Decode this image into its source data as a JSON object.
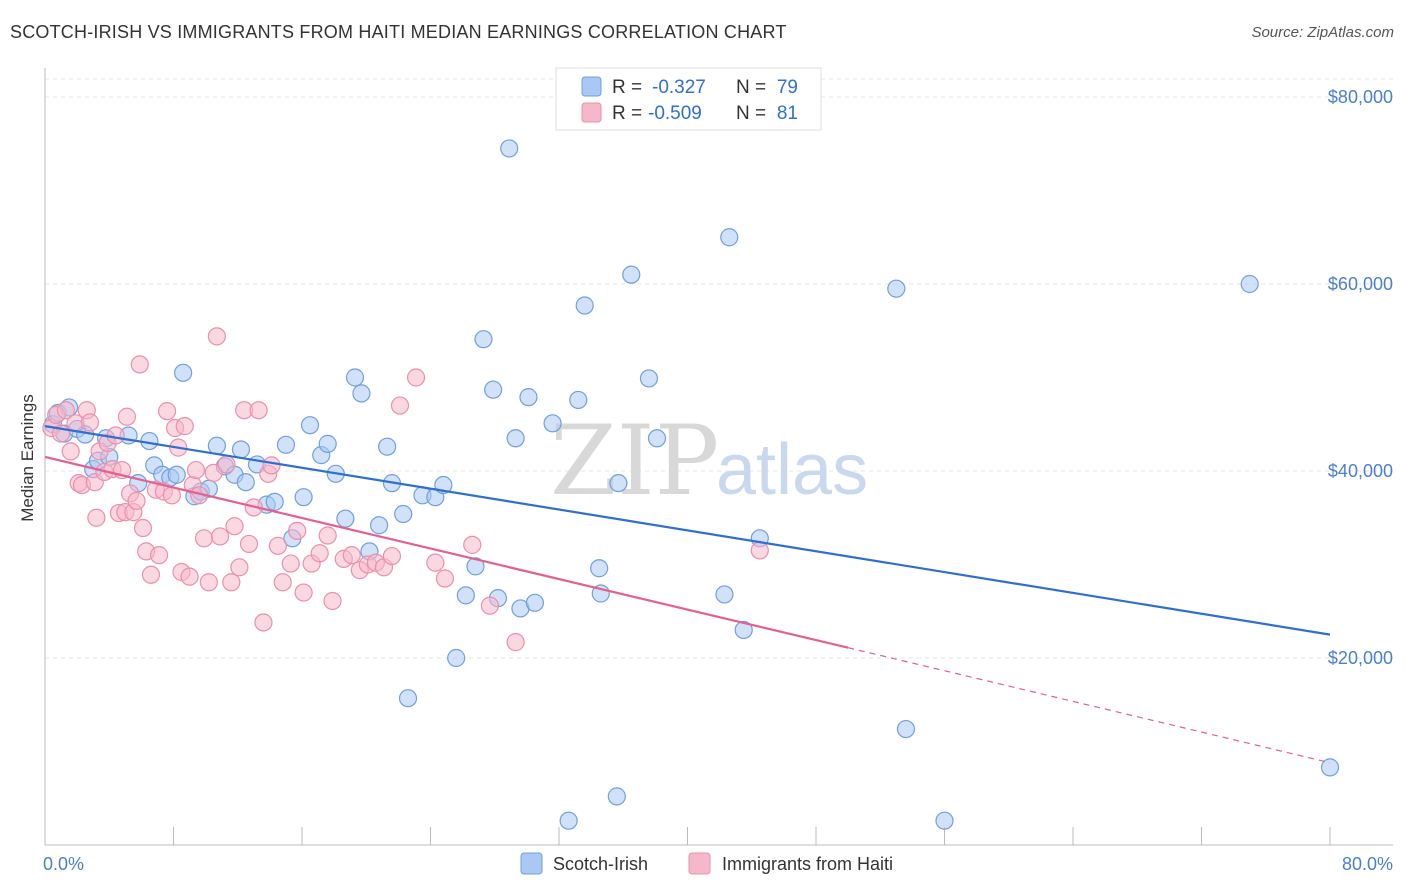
{
  "header": {
    "title": "SCOTCH-IRISH VS IMMIGRANTS FROM HAITI MEDIAN EARNINGS CORRELATION CHART",
    "source": "Source: ZipAtlas.com"
  },
  "watermark": {
    "zip": "ZIP",
    "atlas": "atlas"
  },
  "legend": {
    "rows": [
      {
        "r_label": "R =",
        "r_value": "-0.327",
        "n_label": "N =",
        "n_value": "79",
        "color": "#a9c8f3"
      },
      {
        "r_label": "R =",
        "r_value": "-0.509",
        "n_label": "N =",
        "n_value": "81",
        "color": "#f5b8cb"
      }
    ]
  },
  "chart_data": {
    "type": "scatter",
    "title": "SCOTCH-IRISH VS IMMIGRANTS FROM HAITI MEDIAN EARNINGS CORRELATION CHART",
    "xlabel": "",
    "ylabel": "Median Earnings",
    "xlim": [
      0,
      80
    ],
    "ylim": [
      0,
      82000
    ],
    "x_tick_labels": [
      "0.0%",
      "80.0%"
    ],
    "y_ticks": [
      20000,
      40000,
      60000,
      80000
    ],
    "y_tick_labels": [
      "$20,000",
      "$40,000",
      "$60,000",
      "$80,000"
    ],
    "grid": true,
    "legend_position": "top-center",
    "series": [
      {
        "name": "Scotch-Irish",
        "color": "#6fa0e0",
        "fill": "#a9c8f3",
        "line_color": "#2f6fd0",
        "trend": {
          "x0": 0,
          "y0": 44800,
          "x1": 80,
          "y1": 22500
        },
        "points": [
          [
            0.5,
            45000
          ],
          [
            0.8,
            46200
          ],
          [
            1.2,
            44000
          ],
          [
            1.5,
            46800
          ],
          [
            2,
            44500
          ],
          [
            2.5,
            43900
          ],
          [
            3,
            40200
          ],
          [
            3.3,
            41100
          ],
          [
            3.8,
            43500
          ],
          [
            4,
            41500
          ],
          [
            5.2,
            43800
          ],
          [
            5.8,
            38700
          ],
          [
            6.5,
            43200
          ],
          [
            6.8,
            40600
          ],
          [
            7.3,
            39600
          ],
          [
            7.8,
            39300
          ],
          [
            8.2,
            39600
          ],
          [
            8.6,
            50500
          ],
          [
            9.3,
            37300
          ],
          [
            9.7,
            37800
          ],
          [
            10.2,
            38100
          ],
          [
            10.7,
            42700
          ],
          [
            11.2,
            40500
          ],
          [
            11.8,
            39600
          ],
          [
            12.2,
            42300
          ],
          [
            12.5,
            38800
          ],
          [
            13.2,
            40700
          ],
          [
            13.8,
            36400
          ],
          [
            14.3,
            36700
          ],
          [
            15,
            42800
          ],
          [
            15.4,
            32800
          ],
          [
            16.1,
            37200
          ],
          [
            16.5,
            44900
          ],
          [
            17.2,
            41700
          ],
          [
            17.6,
            42900
          ],
          [
            18.1,
            39700
          ],
          [
            18.7,
            34900
          ],
          [
            19.3,
            50000
          ],
          [
            19.7,
            48300
          ],
          [
            20.2,
            31400
          ],
          [
            20.8,
            34200
          ],
          [
            21.3,
            42600
          ],
          [
            21.6,
            38700
          ],
          [
            22.3,
            35400
          ],
          [
            22.6,
            15700
          ],
          [
            23.5,
            37400
          ],
          [
            24.3,
            37200
          ],
          [
            24.8,
            38500
          ],
          [
            25.6,
            20000
          ],
          [
            26.2,
            26700
          ],
          [
            26.8,
            29800
          ],
          [
            27.3,
            54100
          ],
          [
            27.9,
            48700
          ],
          [
            28.2,
            26400
          ],
          [
            29.3,
            43500
          ],
          [
            29.6,
            25300
          ],
          [
            30.1,
            47900
          ],
          [
            30.5,
            25900
          ],
          [
            31.6,
            45100
          ],
          [
            32.6,
            2600
          ],
          [
            33.2,
            47600
          ],
          [
            33.6,
            57700
          ],
          [
            34.5,
            29600
          ],
          [
            34.6,
            26900
          ],
          [
            35.6,
            5200
          ],
          [
            35.7,
            38700
          ],
          [
            36.5,
            61000
          ],
          [
            37.6,
            49900
          ],
          [
            38.1,
            43500
          ],
          [
            42.3,
            26800
          ],
          [
            42.6,
            65000
          ],
          [
            43.5,
            23000
          ],
          [
            44.5,
            32800
          ],
          [
            53,
            59500
          ],
          [
            53.6,
            12400
          ],
          [
            56,
            2600
          ],
          [
            75,
            60000
          ],
          [
            80,
            8300
          ],
          [
            28.9,
            74500
          ]
        ]
      },
      {
        "name": "Immigrants from Haiti",
        "color": "#ec8fab",
        "fill": "#f5b8cb",
        "line_color": "#e5608e",
        "trend": {
          "x0": 0,
          "y0": 41500,
          "x1": 50,
          "y1": 21100
        },
        "trend_dashed_to": {
          "x": 80,
          "y": 8800
        },
        "points": [
          [
            0.4,
            44600
          ],
          [
            0.7,
            46000
          ],
          [
            1,
            44000
          ],
          [
            1.3,
            46500
          ],
          [
            1.6,
            42100
          ],
          [
            1.9,
            45100
          ],
          [
            2.1,
            38700
          ],
          [
            2.3,
            38500
          ],
          [
            2.6,
            46500
          ],
          [
            2.8,
            45200
          ],
          [
            3.1,
            38800
          ],
          [
            3.2,
            35000
          ],
          [
            3.4,
            42100
          ],
          [
            3.7,
            39900
          ],
          [
            3.9,
            43000
          ],
          [
            4.2,
            40200
          ],
          [
            4.4,
            43800
          ],
          [
            4.6,
            35500
          ],
          [
            4.8,
            40100
          ],
          [
            5,
            35600
          ],
          [
            5.1,
            45800
          ],
          [
            5.3,
            37600
          ],
          [
            5.5,
            35600
          ],
          [
            5.7,
            36800
          ],
          [
            5.9,
            51400
          ],
          [
            6.1,
            33900
          ],
          [
            6.3,
            31400
          ],
          [
            6.6,
            28900
          ],
          [
            6.9,
            38000
          ],
          [
            7.1,
            31000
          ],
          [
            7.4,
            37800
          ],
          [
            7.6,
            46400
          ],
          [
            7.9,
            37400
          ],
          [
            8.1,
            44600
          ],
          [
            8.3,
            42500
          ],
          [
            8.5,
            29200
          ],
          [
            8.7,
            44800
          ],
          [
            9,
            28700
          ],
          [
            9.2,
            38500
          ],
          [
            9.4,
            40100
          ],
          [
            9.6,
            37400
          ],
          [
            9.9,
            32800
          ],
          [
            10.2,
            28100
          ],
          [
            10.5,
            39800
          ],
          [
            10.7,
            54400
          ],
          [
            10.9,
            33000
          ],
          [
            11.3,
            40700
          ],
          [
            11.6,
            28100
          ],
          [
            11.8,
            34100
          ],
          [
            12.1,
            29700
          ],
          [
            12.4,
            46500
          ],
          [
            12.7,
            32200
          ],
          [
            13,
            36100
          ],
          [
            13.3,
            46500
          ],
          [
            13.6,
            23800
          ],
          [
            13.9,
            39700
          ],
          [
            14.1,
            40600
          ],
          [
            14.5,
            32000
          ],
          [
            14.8,
            28100
          ],
          [
            15.3,
            30100
          ],
          [
            15.7,
            33600
          ],
          [
            16.1,
            27000
          ],
          [
            16.6,
            30100
          ],
          [
            17.1,
            31200
          ],
          [
            17.6,
            33100
          ],
          [
            17.9,
            26100
          ],
          [
            18.6,
            30600
          ],
          [
            19.1,
            31000
          ],
          [
            19.6,
            29400
          ],
          [
            20.1,
            30000
          ],
          [
            20.6,
            30200
          ],
          [
            21.1,
            29700
          ],
          [
            21.6,
            30900
          ],
          [
            22.1,
            47000
          ],
          [
            23.1,
            50000
          ],
          [
            24.3,
            30200
          ],
          [
            24.9,
            28500
          ],
          [
            26.6,
            32100
          ],
          [
            27.7,
            25600
          ],
          [
            29.3,
            21700
          ],
          [
            44.5,
            31500
          ]
        ]
      }
    ]
  },
  "bottom_legend": [
    {
      "label": "Scotch-Irish",
      "color": "#a9c8f3"
    },
    {
      "label": "Immigrants from Haiti",
      "color": "#f5b8cb"
    }
  ]
}
